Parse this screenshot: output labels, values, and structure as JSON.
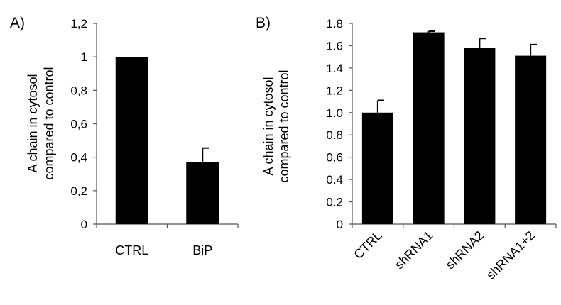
{
  "colors": {
    "bar": "#000000",
    "axis": "#555555",
    "errorbar": "#000000"
  },
  "chart_data": [
    {
      "panel_label": "A)",
      "type": "bar",
      "categories": [
        "CTRL",
        "BiP"
      ],
      "values": [
        1.0,
        0.37
      ],
      "errors": [
        0,
        0.085
      ],
      "ylabel_lines": [
        "A chain in cytosol",
        "compared to control"
      ],
      "yticks": [
        "0",
        "0,2",
        "0,4",
        "0,6",
        "0,8",
        "1",
        "1,2"
      ],
      "ylim": [
        0,
        1.2
      ],
      "xlabel_rotated": false
    },
    {
      "panel_label": "B)",
      "type": "bar",
      "categories": [
        "CTRL",
        "shRNA1",
        "shRNA2",
        "shRNA1+2"
      ],
      "values": [
        1.0,
        1.72,
        1.58,
        1.51
      ],
      "errors": [
        0.11,
        0.01,
        0.085,
        0.1
      ],
      "ylabel_lines": [
        "A chain in cytosol",
        "compared to control"
      ],
      "yticks": [
        "0",
        "0.2",
        "0.4",
        "0.6",
        "0.8",
        "1.0",
        "1.2",
        "1.4",
        "1.6",
        "1.8"
      ],
      "ylim": [
        0,
        1.8
      ],
      "xlabel_rotated": true
    }
  ]
}
